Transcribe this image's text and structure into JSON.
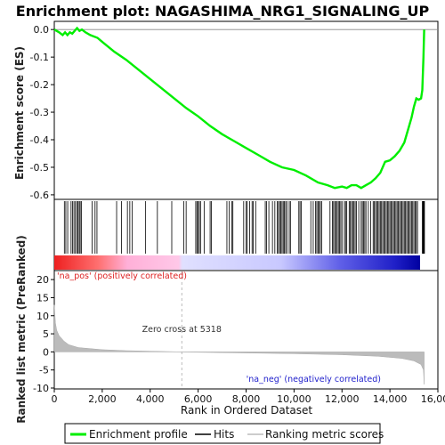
{
  "chart_data": {
    "type": "line",
    "title": "Enrichment plot: NAGASHIMA_NRG1_SIGNALING_UP",
    "panels": {
      "enrichment": {
        "ylabel": "Enrichment score (ES)",
        "ylim": [
          -0.61,
          0.02
        ],
        "yticks": [
          0.0,
          -0.1,
          -0.2,
          -0.3,
          -0.4,
          -0.5,
          -0.6
        ],
        "ytick_labels": [
          "0.0",
          "-0.1",
          "-0.2",
          "-0.3",
          "-0.4",
          "-0.5",
          "-0.6"
        ],
        "series": [
          {
            "name": "Enrichment profile",
            "color": "#00ee00",
            "points": [
              [
                0,
                0.0
              ],
              [
                200,
                -0.01
              ],
              [
                350,
                -0.02
              ],
              [
                450,
                -0.01
              ],
              [
                550,
                -0.02
              ],
              [
                650,
                -0.01
              ],
              [
                750,
                -0.015
              ],
              [
                850,
                -0.005
              ],
              [
                950,
                0.005
              ],
              [
                1050,
                -0.005
              ],
              [
                1150,
                0.0
              ],
              [
                1300,
                -0.01
              ],
              [
                1500,
                -0.02
              ],
              [
                1800,
                -0.03
              ],
              [
                2000,
                -0.045
              ],
              [
                2500,
                -0.08
              ],
              [
                3000,
                -0.11
              ],
              [
                3500,
                -0.145
              ],
              [
                4000,
                -0.18
              ],
              [
                4500,
                -0.215
              ],
              [
                5000,
                -0.25
              ],
              [
                5500,
                -0.285
              ],
              [
                6000,
                -0.315
              ],
              [
                6500,
                -0.35
              ],
              [
                7000,
                -0.38
              ],
              [
                7500,
                -0.405
              ],
              [
                8000,
                -0.43
              ],
              [
                8500,
                -0.455
              ],
              [
                9000,
                -0.48
              ],
              [
                9500,
                -0.5
              ],
              [
                10000,
                -0.51
              ],
              [
                10500,
                -0.53
              ],
              [
                11000,
                -0.555
              ],
              [
                11400,
                -0.565
              ],
              [
                11700,
                -0.575
              ],
              [
                12000,
                -0.57
              ],
              [
                12200,
                -0.575
              ],
              [
                12400,
                -0.565
              ],
              [
                12600,
                -0.565
              ],
              [
                12800,
                -0.575
              ],
              [
                13000,
                -0.565
              ],
              [
                13200,
                -0.555
              ],
              [
                13400,
                -0.54
              ],
              [
                13600,
                -0.52
              ],
              [
                13800,
                -0.48
              ],
              [
                14000,
                -0.475
              ],
              [
                14200,
                -0.46
              ],
              [
                14400,
                -0.44
              ],
              [
                14600,
                -0.41
              ],
              [
                14800,
                -0.35
              ],
              [
                14900,
                -0.32
              ],
              [
                15000,
                -0.28
              ],
              [
                15100,
                -0.25
              ],
              [
                15200,
                -0.255
              ],
              [
                15300,
                -0.25
              ],
              [
                15350,
                -0.22
              ],
              [
                15400,
                -0.1
              ],
              [
                15430,
                0.0
              ]
            ]
          }
        ]
      },
      "hits": {
        "label": "Hits",
        "positions": [
          420,
          480,
          560,
          700,
          760,
          820,
          880,
          940,
          990,
          1040,
          1080,
          1130,
          1580,
          1700,
          1780,
          2600,
          2800,
          3050,
          3150,
          3250,
          3800,
          4300,
          4900,
          5400,
          5500,
          5900,
          5950,
          6000,
          6050,
          6100,
          6250,
          6500,
          6550,
          7200,
          7300,
          7400,
          7450,
          7900,
          8000,
          8050,
          8150,
          8250,
          8300,
          8400,
          8800,
          8850,
          8950,
          9100,
          9200,
          9300,
          9350,
          9400,
          9450,
          9500,
          9550,
          9600,
          9650,
          9700,
          9800,
          9850,
          10200,
          10250,
          10300,
          10700,
          10800,
          10900,
          10950,
          11000,
          11050,
          11100,
          11150,
          11500,
          11600,
          11650,
          11700,
          11750,
          11800,
          11850,
          11900,
          11950,
          12000,
          12100,
          12150,
          12200,
          12300,
          12350,
          12400,
          12450,
          12500,
          12550,
          12600,
          12700,
          12800,
          12850,
          12900,
          12950,
          13000,
          13100,
          13200,
          13300,
          13350,
          13400,
          13450,
          13500,
          13550,
          13600,
          13650,
          13700,
          13750,
          13800,
          13850,
          13900,
          13950,
          14000,
          14050,
          14100,
          14150,
          14200,
          14250,
          14300,
          14350,
          14400,
          14450,
          14500,
          14550,
          14600,
          14650,
          14700,
          14750,
          14800,
          14850,
          14900,
          14950,
          15000,
          15050,
          15100,
          15150,
          15350,
          15380,
          15400,
          15420,
          15440
        ]
      },
      "ranked_metric": {
        "ylabel": "Ranked list metric (PreRanked)",
        "ylim": [
          -10,
          22
        ],
        "yticks": [
          20,
          15,
          10,
          5,
          0,
          -5,
          -10
        ],
        "ytick_labels": [
          "20",
          "15",
          "10",
          "5",
          "0",
          "-5",
          "-10"
        ],
        "series": [
          {
            "name": "Ranking metric scores",
            "color": "#bbbbbb",
            "points": [
              [
                0,
                13
              ],
              [
                50,
                8
              ],
              [
                100,
                6
              ],
              [
                200,
                4.5
              ],
              [
                400,
                3
              ],
              [
                600,
                2
              ],
              [
                1000,
                1.2
              ],
              [
                2000,
                0.6
              ],
              [
                3000,
                0.35
              ],
              [
                4000,
                0.2
              ],
              [
                5000,
                0.05
              ],
              [
                5318,
                0
              ],
              [
                6000,
                -0.1
              ],
              [
                8000,
                -0.3
              ],
              [
                10000,
                -0.5
              ],
              [
                12000,
                -0.8
              ],
              [
                13500,
                -1.2
              ],
              [
                14500,
                -1.8
              ],
              [
                15000,
                -2.5
              ],
              [
                15300,
                -3.5
              ],
              [
                15400,
                -5
              ],
              [
                15430,
                -9
              ]
            ]
          }
        ],
        "zero_cross_label": "Zero cross at 5318",
        "zero_cross": 5318,
        "pos_label": "'na_pos' (positively correlated)",
        "neg_label": "'na_neg' (negatively correlated)"
      }
    },
    "xlabel": "Rank in Ordered Dataset",
    "xlim": [
      0,
      16000
    ],
    "xticks": [
      0,
      2000,
      4000,
      6000,
      8000,
      10000,
      12000,
      14000,
      16000
    ],
    "xtick_labels": [
      "0",
      "2,000",
      "4,000",
      "6,000",
      "8,000",
      "10,000",
      "12,000",
      "14,000",
      "16,000"
    ],
    "n_genes": 15430,
    "legend": {
      "placement": "bottom",
      "entries": [
        {
          "label": "Enrichment profile",
          "color": "#00ee00"
        },
        {
          "label": "Hits",
          "color": "#000000"
        },
        {
          "label": "Ranking metric scores",
          "color": "#bbbbbb"
        }
      ]
    }
  }
}
